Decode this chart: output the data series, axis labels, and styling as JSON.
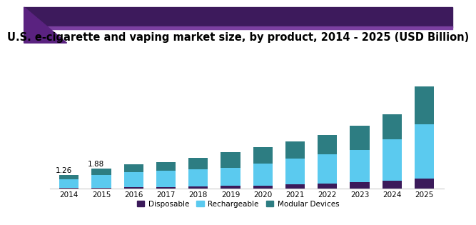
{
  "title": "U.S. e-cigarette and vaping market size, by product, 2014 - 2025 (USD Billion)",
  "years": [
    2014,
    2015,
    2016,
    2017,
    2018,
    2019,
    2020,
    2021,
    2022,
    2023,
    2024,
    2025
  ],
  "disposable": [
    0.05,
    0.08,
    0.1,
    0.13,
    0.17,
    0.22,
    0.28,
    0.38,
    0.48,
    0.6,
    0.72,
    0.92
  ],
  "rechargeable": [
    0.83,
    1.2,
    1.43,
    1.52,
    1.62,
    1.72,
    2.05,
    2.45,
    2.72,
    3.0,
    3.9,
    5.1
  ],
  "modular": [
    0.38,
    0.6,
    0.72,
    0.85,
    1.11,
    1.46,
    1.52,
    1.57,
    1.8,
    2.3,
    2.38,
    3.58
  ],
  "annotations": [
    {
      "year_idx": 0,
      "text": "1.26"
    },
    {
      "year_idx": 1,
      "text": "1.88"
    }
  ],
  "colors": {
    "disposable": "#3b1a5a",
    "rechargeable": "#5bcaef",
    "modular": "#2d7d82",
    "background": "#ffffff",
    "header_dark": "#3d1a5c",
    "header_med": "#7b3fa0",
    "spine_color": "#cccccc"
  },
  "legend_labels": [
    "Disposable",
    "Rechargeable",
    "Modular Devices"
  ],
  "bar_width": 0.6,
  "ylim": [
    0,
    11.5
  ],
  "title_fontsize": 10.5,
  "tick_fontsize": 7.5,
  "legend_fontsize": 7.5,
  "annot_fontsize": 7.5
}
